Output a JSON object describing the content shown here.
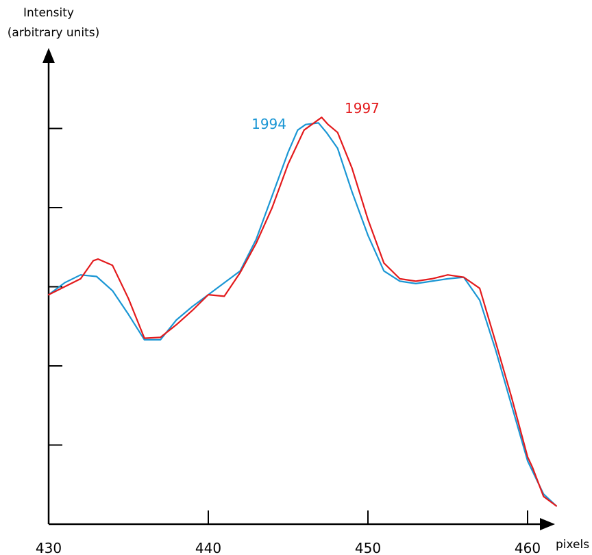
{
  "chart_data": {
    "type": "line",
    "ylabel_line1": "Intensity",
    "ylabel_line2": "(arbitrary units)",
    "xlabel": "pixels",
    "xlim": [
      430,
      461.5
    ],
    "ylim": [
      0,
      5.47
    ],
    "x_ticks": [
      430,
      440,
      450,
      460
    ],
    "y_ticks": [
      1,
      2,
      3,
      4,
      5
    ],
    "grid": false,
    "series": [
      {
        "name": "1994",
        "color": "#1a96d4",
        "x": [
          430,
          431,
          432,
          433,
          434,
          435,
          436,
          437,
          438,
          439,
          440,
          441,
          442,
          443,
          444,
          445,
          445.6,
          446.1,
          446.9,
          447.4,
          448.1,
          449,
          450,
          451,
          452,
          453,
          454,
          455,
          456,
          457,
          458,
          459,
          460,
          461,
          461.8
        ],
        "y": [
          2.9,
          3.05,
          3.15,
          3.13,
          2.95,
          2.65,
          2.33,
          2.33,
          2.58,
          2.75,
          2.9,
          3.05,
          3.2,
          3.6,
          4.15,
          4.7,
          4.98,
          5.05,
          5.07,
          4.95,
          4.75,
          4.2,
          3.65,
          3.2,
          3.07,
          3.04,
          3.07,
          3.1,
          3.12,
          2.83,
          2.2,
          1.5,
          0.8,
          0.38,
          0.23
        ]
      },
      {
        "name": "1997",
        "color": "#e31a1c",
        "x": [
          430,
          431,
          432,
          432.8,
          433.1,
          434,
          435,
          436,
          437,
          438,
          439,
          440,
          441,
          442,
          443,
          444,
          445,
          446,
          447.1,
          447.5,
          448.1,
          449,
          450,
          451,
          452,
          453,
          454,
          455,
          456,
          457,
          458,
          459,
          460,
          460.3,
          461,
          461.8
        ],
        "y": [
          2.9,
          3.0,
          3.1,
          3.33,
          3.35,
          3.27,
          2.85,
          2.35,
          2.36,
          2.52,
          2.7,
          2.9,
          2.88,
          3.18,
          3.55,
          4.0,
          4.55,
          4.98,
          5.14,
          5.05,
          4.95,
          4.5,
          3.85,
          3.3,
          3.1,
          3.07,
          3.1,
          3.15,
          3.12,
          2.98,
          2.3,
          1.6,
          0.85,
          0.72,
          0.35,
          0.23
        ]
      }
    ]
  }
}
